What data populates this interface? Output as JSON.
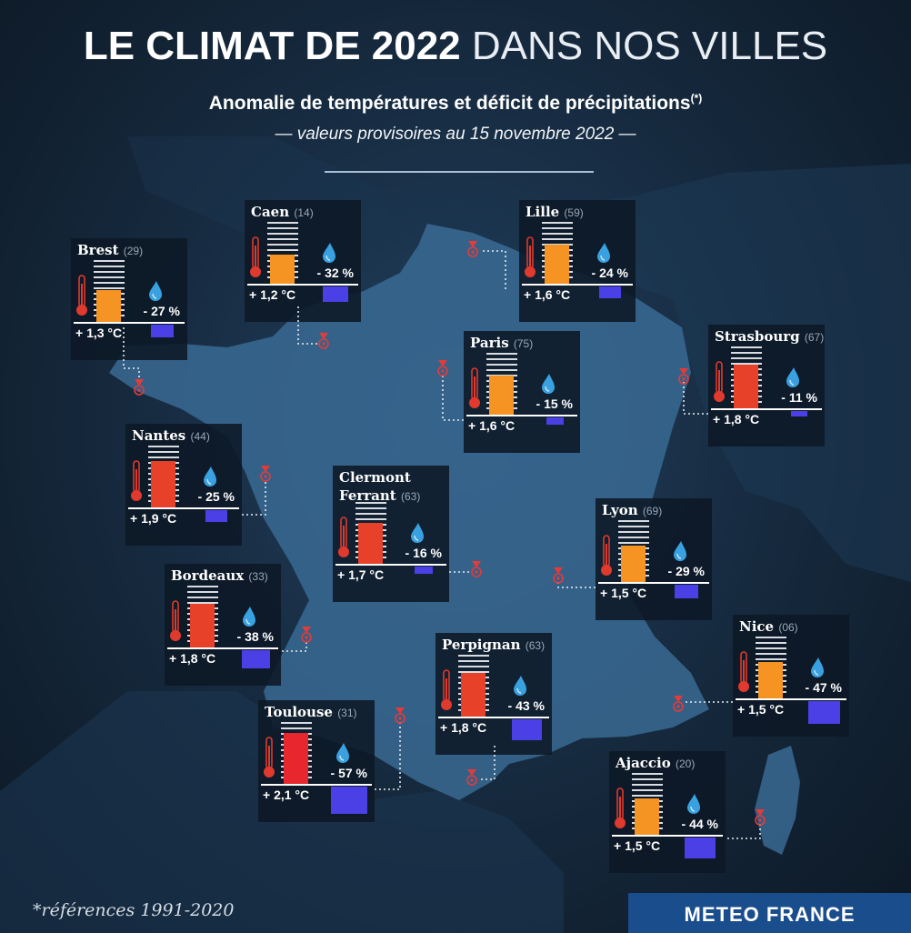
{
  "title": {
    "bold": "LE CLIMAT DE 2022",
    "light": "DANS NOS VILLES"
  },
  "subtitle": "Anomalie de températures et déficit de précipitations",
  "subtitle_mark": "(*)",
  "subtitle2": "— valeurs provisoires au 15 novembre 2022 —",
  "footnote": "*références 1991-2020",
  "brand": "METEO FRANCE",
  "colors": {
    "deficit_bar": "#4b3fe6",
    "temp_orange": "#f59422",
    "temp_red": "#e8412a",
    "drop": "#3aa1e0",
    "thermometer": "#e03a2e"
  },
  "cities": [
    {
      "id": "brest",
      "name": "Brest",
      "num": "(29)",
      "temp": "+ 1,3 °C",
      "temp_value": 1.3,
      "precip": "- 27 %",
      "precip_value": -27
    },
    {
      "id": "caen",
      "name": "Caen",
      "num": "(14)",
      "temp": "+ 1,2 °C",
      "temp_value": 1.2,
      "precip": "- 32 %",
      "precip_value": -32
    },
    {
      "id": "lille",
      "name": "Lille",
      "num": "(59)",
      "temp": "+ 1,6 °C",
      "temp_value": 1.6,
      "precip": "- 24 %",
      "precip_value": -24
    },
    {
      "id": "paris",
      "name": "Paris",
      "num": "(75)",
      "temp": "+ 1,6 °C",
      "temp_value": 1.6,
      "precip": "- 15 %",
      "precip_value": -15
    },
    {
      "id": "strasbourg",
      "name": "Strasbourg",
      "num": "(67)",
      "temp": "+ 1,8 °C",
      "temp_value": 1.8,
      "precip": "- 11 %",
      "precip_value": -11
    },
    {
      "id": "nantes",
      "name": "Nantes",
      "num": "(44)",
      "temp": "+ 1,9 °C",
      "temp_value": 1.9,
      "precip": "- 25 %",
      "precip_value": -25
    },
    {
      "id": "clermont",
      "name": "Clermont",
      "name2": "Ferrant",
      "num": "(63)",
      "temp": "+ 1,7 °C",
      "temp_value": 1.7,
      "precip": "- 16 %",
      "precip_value": -16
    },
    {
      "id": "lyon",
      "name": "Lyon",
      "num": "(69)",
      "temp": "+ 1,5 °C",
      "temp_value": 1.5,
      "precip": "- 29 %",
      "precip_value": -29
    },
    {
      "id": "bordeaux",
      "name": "Bordeaux",
      "num": "(33)",
      "temp": "+ 1,8 °C",
      "temp_value": 1.8,
      "precip": "- 38 %",
      "precip_value": -38
    },
    {
      "id": "nice",
      "name": "Nice",
      "num": "(06)",
      "temp": "+ 1,5 °C",
      "temp_value": 1.5,
      "precip": "- 47 %",
      "precip_value": -47
    },
    {
      "id": "perpignan",
      "name": "Perpignan",
      "num": "(63)",
      "temp": "+ 1,8 °C",
      "temp_value": 1.8,
      "precip": "- 43 %",
      "precip_value": -43
    },
    {
      "id": "toulouse",
      "name": "Toulouse",
      "num": "(31)",
      "temp": "+ 2,1 °C",
      "temp_value": 2.1,
      "precip": "- 57 %",
      "precip_value": -57
    },
    {
      "id": "ajaccio",
      "name": "Ajaccio",
      "num": "(20)",
      "temp": "+ 1,5 °C",
      "temp_value": 1.5,
      "precip": "- 44 %",
      "precip_value": -44
    }
  ]
}
